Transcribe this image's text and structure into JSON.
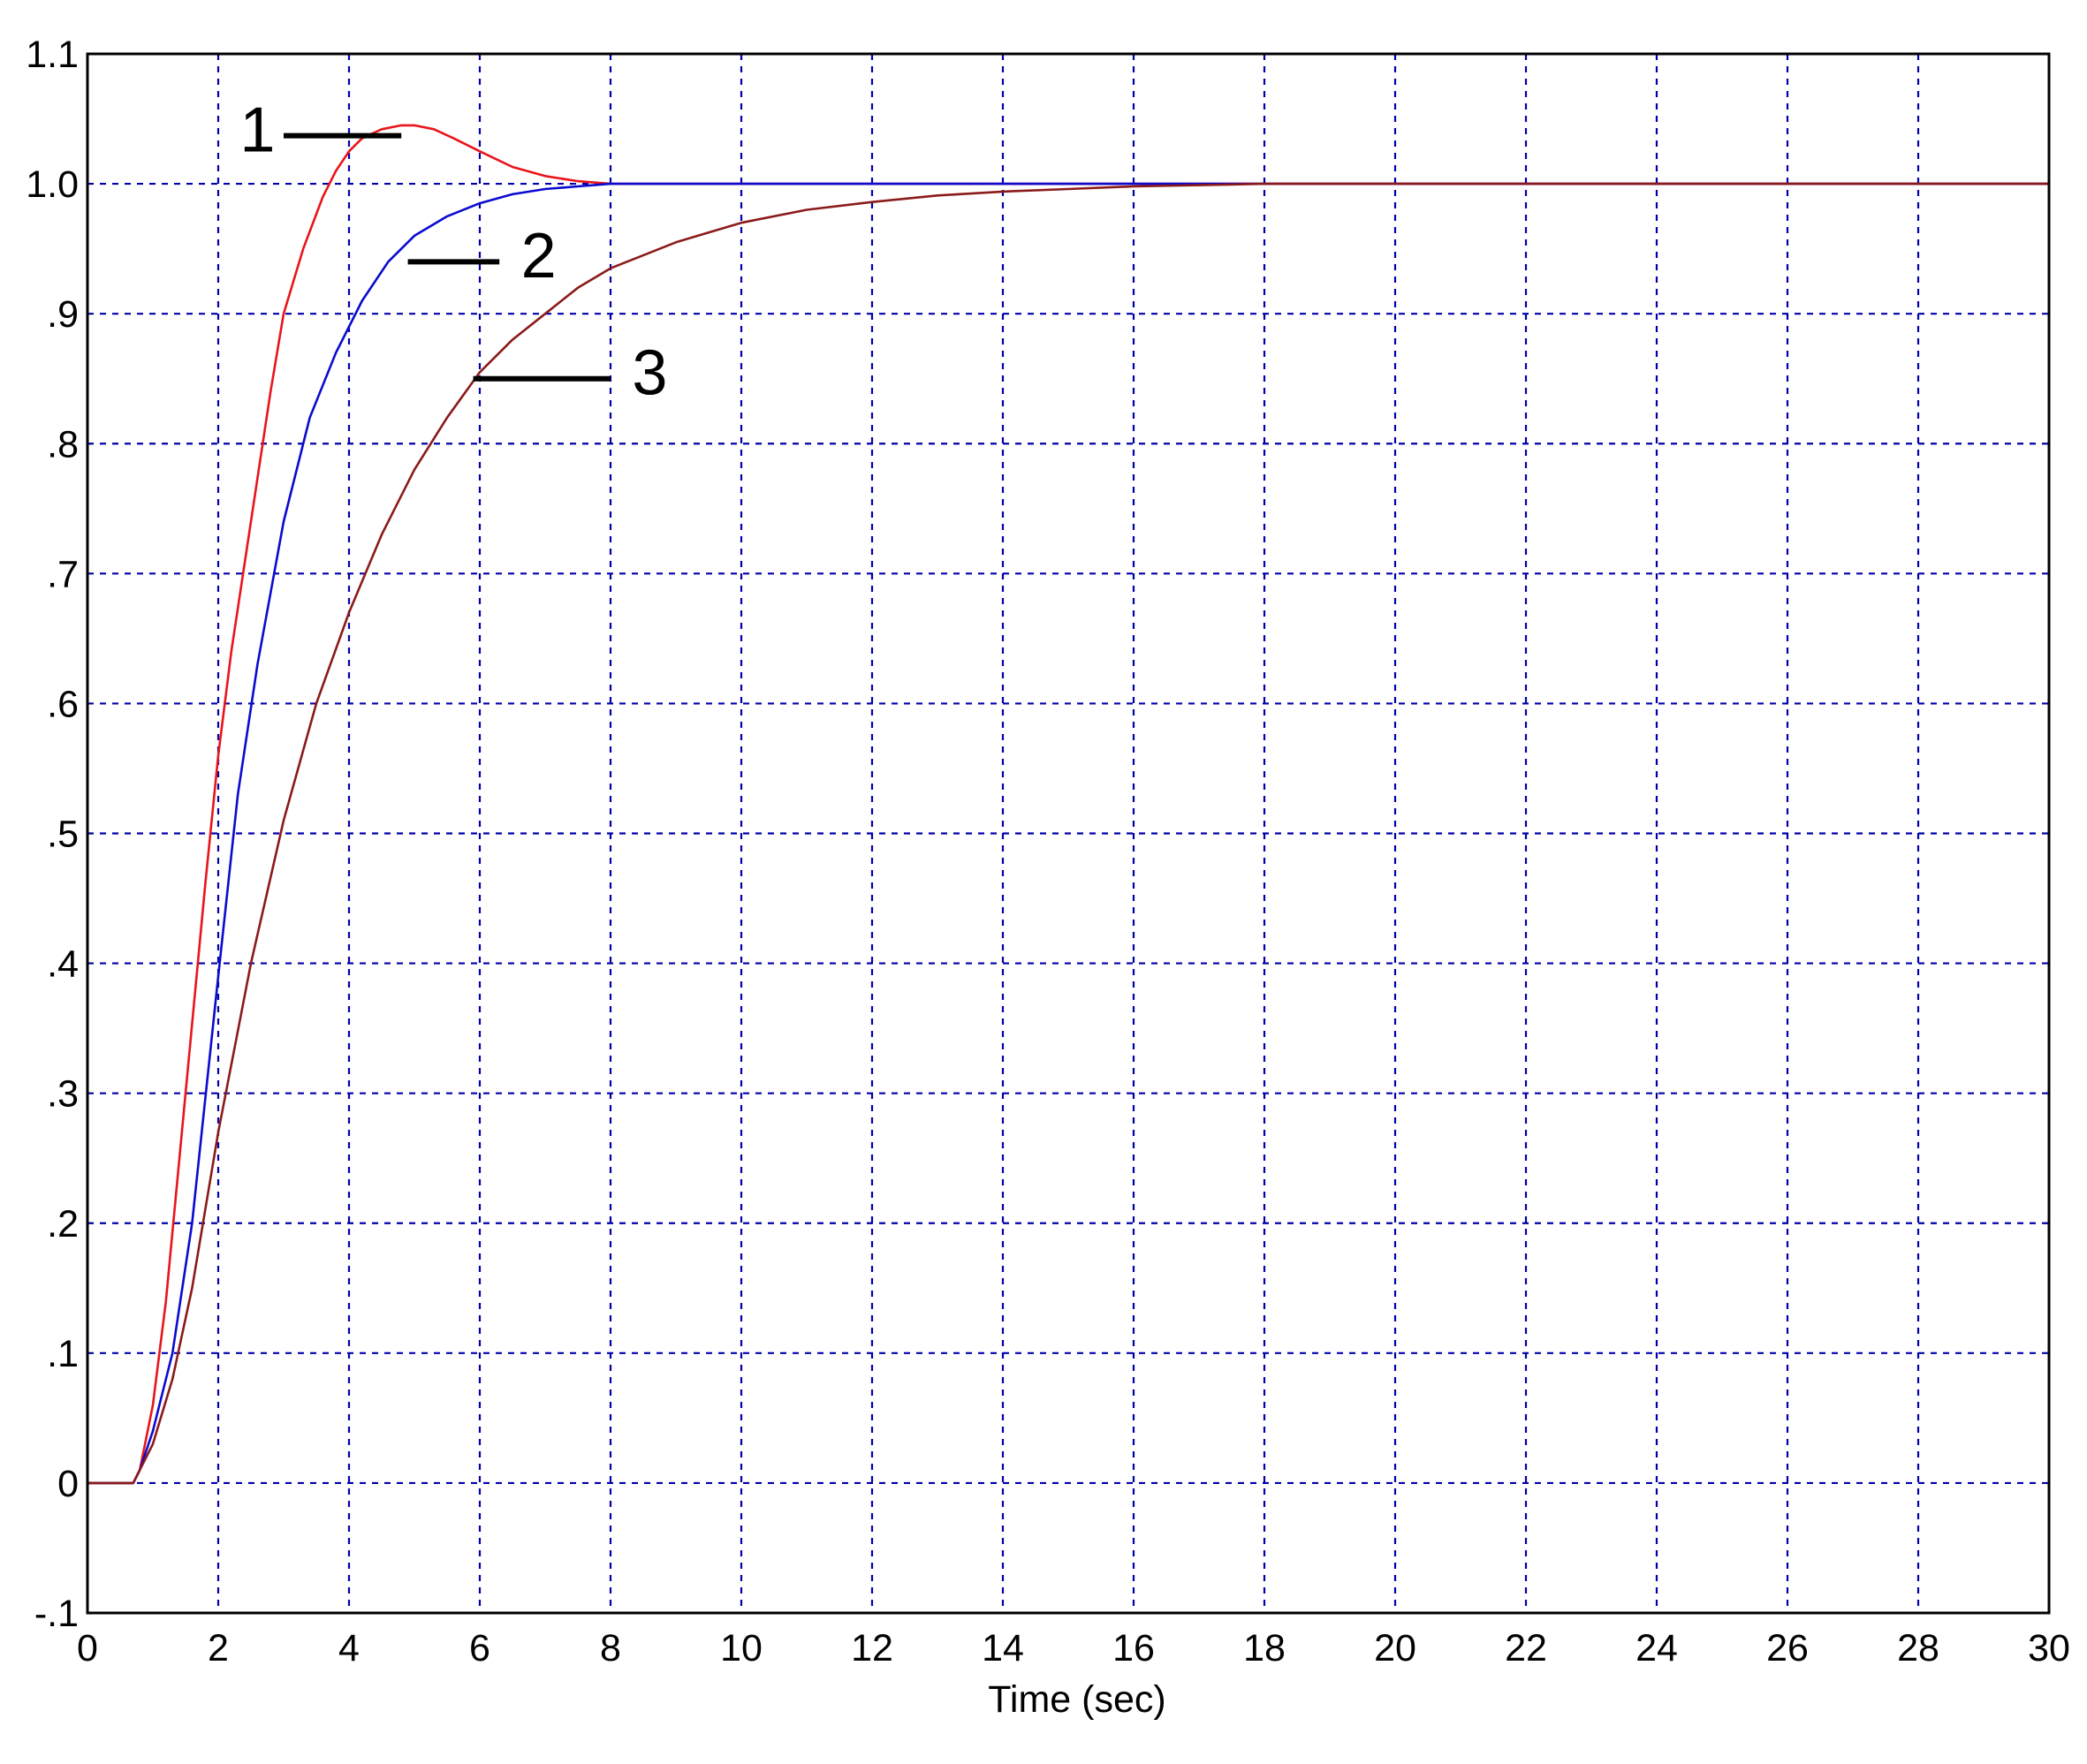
{
  "chart_data": {
    "type": "line",
    "title": "",
    "xlabel": "Time (sec)",
    "ylabel": "",
    "xlim": [
      0,
      30
    ],
    "ylim": [
      -0.1,
      1.1
    ],
    "grid": true,
    "legend": "none",
    "x_ticks": [
      0,
      2,
      4,
      6,
      8,
      10,
      12,
      14,
      16,
      18,
      20,
      22,
      24,
      26,
      28,
      30
    ],
    "x_tick_labels": [
      "0",
      "2",
      "4",
      "6",
      "8",
      "10",
      "12",
      "14",
      "16",
      "18",
      "20",
      "22",
      "24",
      "26",
      "28",
      "30"
    ],
    "y_ticks": [
      -0.1,
      0,
      0.1,
      0.2,
      0.3,
      0.4,
      0.5,
      0.6,
      0.7,
      0.8,
      0.9,
      1.0,
      1.1
    ],
    "y_tick_labels": [
      "-.1",
      "0",
      ".1",
      ".2",
      ".3",
      ".4",
      ".5",
      ".6",
      ".7",
      ".8",
      ".9",
      "1.0",
      "1.1"
    ],
    "colors": {
      "grid": "#0000aa",
      "frame": "#000000",
      "series_1": "#e8151b",
      "series_2": "#0a0ad0",
      "series_3": "#8b1a1a",
      "annotation": "#000000"
    },
    "series": [
      {
        "id": "1",
        "color": "#e8151b",
        "x": [
          0,
          0.7,
          0.8,
          1.0,
          1.2,
          1.5,
          1.8,
          2.0,
          2.2,
          2.5,
          2.8,
          3.0,
          3.3,
          3.6,
          3.8,
          4.0,
          4.2,
          4.5,
          4.8,
          5.0,
          5.3,
          5.6,
          6.0,
          6.5,
          7.0,
          7.5,
          8.0,
          8.5,
          9.0,
          10.0,
          11.0,
          12.0,
          30.0
        ],
        "y": [
          0,
          0,
          0.01,
          0.06,
          0.14,
          0.3,
          0.46,
          0.56,
          0.64,
          0.74,
          0.84,
          0.9,
          0.95,
          0.99,
          1.01,
          1.025,
          1.035,
          1.042,
          1.045,
          1.045,
          1.042,
          1.035,
          1.025,
          1.013,
          1.006,
          1.002,
          1.0,
          1.0,
          1.0,
          1.0,
          1.0,
          1.0,
          1.0
        ]
      },
      {
        "id": "2",
        "color": "#0a0ad0",
        "x": [
          0,
          0.7,
          0.8,
          1.0,
          1.3,
          1.6,
          2.0,
          2.3,
          2.6,
          3.0,
          3.4,
          3.8,
          4.2,
          4.6,
          5.0,
          5.5,
          6.0,
          6.5,
          7.0,
          7.5,
          8.0,
          8.5,
          9.0,
          10.0,
          12.0,
          14.0,
          16.0,
          17.0,
          30.0
        ],
        "y": [
          0,
          0,
          0.01,
          0.04,
          0.1,
          0.2,
          0.39,
          0.53,
          0.63,
          0.74,
          0.82,
          0.87,
          0.91,
          0.94,
          0.96,
          0.975,
          0.985,
          0.992,
          0.996,
          0.998,
          1.0,
          1.0,
          1.0,
          1.0,
          1.0,
          1.0,
          1.0,
          1.0,
          1.0
        ]
      },
      {
        "id": "3",
        "color": "#8b1a1a",
        "x": [
          0,
          0.7,
          0.8,
          1.0,
          1.3,
          1.6,
          2.0,
          2.5,
          3.0,
          3.5,
          4.0,
          4.5,
          5.0,
          5.5,
          6.0,
          6.5,
          7.0,
          7.5,
          8.0,
          9.0,
          10.0,
          11.0,
          12.0,
          13.0,
          14.0,
          15.0,
          16.0,
          17.0,
          18.0,
          20.0,
          30.0
        ],
        "y": [
          0,
          0,
          0.01,
          0.03,
          0.08,
          0.15,
          0.27,
          0.4,
          0.51,
          0.6,
          0.67,
          0.73,
          0.78,
          0.82,
          0.855,
          0.88,
          0.9,
          0.92,
          0.935,
          0.955,
          0.97,
          0.98,
          0.986,
          0.991,
          0.994,
          0.996,
          0.998,
          0.999,
          1.0,
          1.0,
          1.0
        ]
      }
    ],
    "annotations": [
      {
        "label": "1",
        "series": "1",
        "line_x": [
          3.0,
          4.8
        ],
        "line_y": 1.037,
        "text_x": 2.6,
        "text_y": 1.042
      },
      {
        "label": "2",
        "series": "2",
        "line_x": [
          4.9,
          6.3
        ],
        "line_y": 0.94,
        "text_x": 6.9,
        "text_y": 0.945
      },
      {
        "label": "3",
        "series": "3",
        "line_x": [
          5.9,
          8.0
        ],
        "line_y": 0.85,
        "text_x": 8.6,
        "text_y": 0.855
      }
    ]
  }
}
